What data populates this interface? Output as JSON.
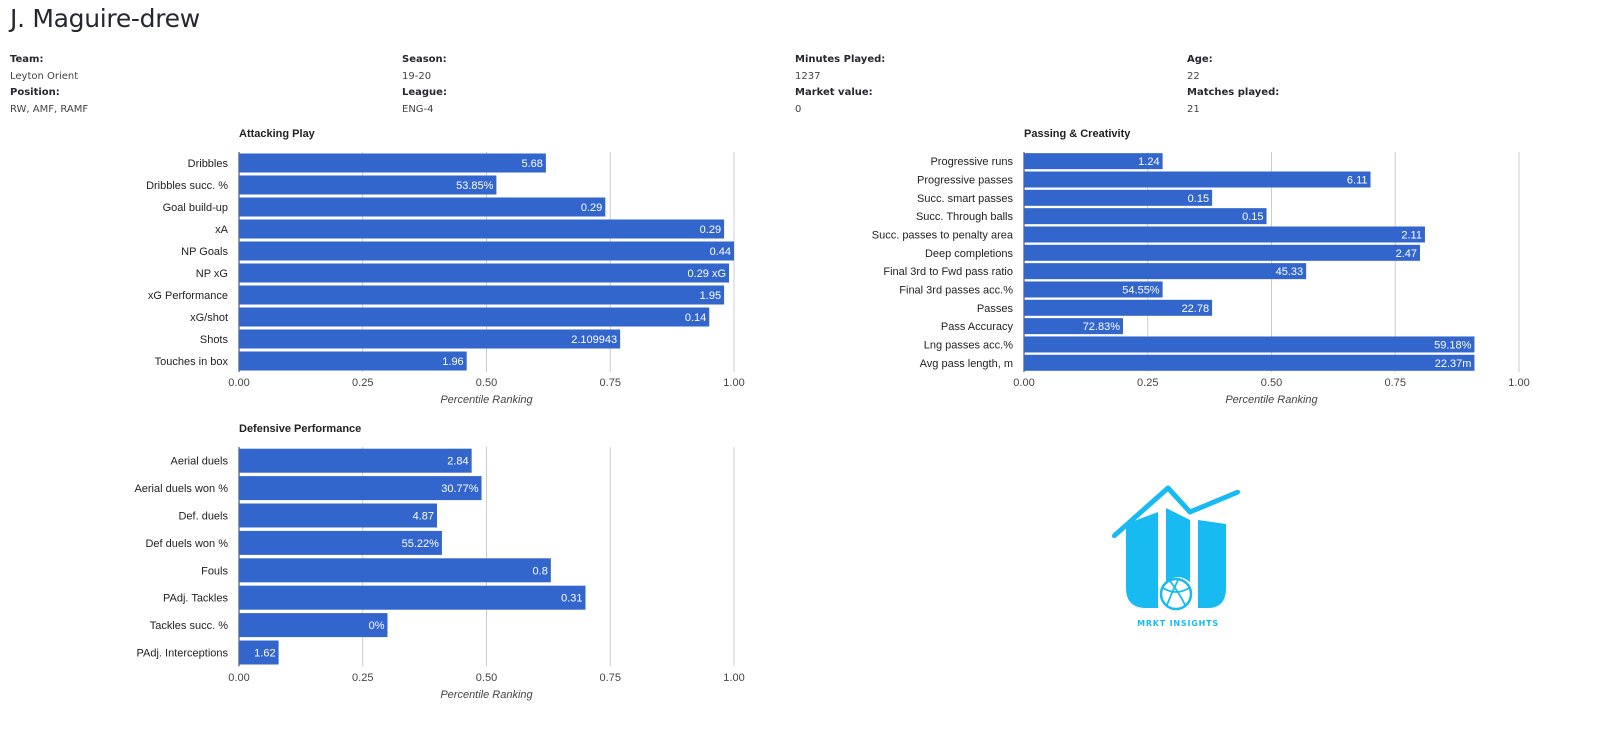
{
  "player": {
    "name": "J. Maguire-drew"
  },
  "info": [
    {
      "label": "Team:",
      "value": "Leyton Orient",
      "label2": "Position:",
      "value2": "RW, AMF, RAMF"
    },
    {
      "label": "Season:",
      "value": "19-20",
      "label2": "League:",
      "value2": "ENG-4"
    },
    {
      "label": "Minutes Played:",
      "value": "1237",
      "label2": "Market value:",
      "value2": "0"
    },
    {
      "label": "Age:",
      "value": "22",
      "label2": "Matches played:",
      "value2": "21"
    }
  ],
  "colors": {
    "bar": "#3366cc",
    "grid": "#cccccc",
    "logo": "#18baf2"
  },
  "brand": {
    "text": "MRKT INSIGHTS"
  },
  "chart_data": [
    {
      "type": "bar",
      "orientation": "horizontal",
      "title": "Attacking Play",
      "xlabel": "Percentile Ranking",
      "xlim": [
        0,
        1
      ],
      "ticks": [
        "0.00",
        "0.25",
        "0.50",
        "0.75",
        "1.00"
      ],
      "categories": [
        "Dribbles",
        "Dribbles succ. %",
        "Goal build-up",
        "xA",
        "NP Goals",
        "NP xG",
        "xG Performance",
        "xG/shot",
        "Shots",
        "Touches in box"
      ],
      "values": [
        0.62,
        0.52,
        0.74,
        0.98,
        1.0,
        0.99,
        0.98,
        0.95,
        0.77,
        0.46
      ],
      "data_labels": [
        "5.68",
        "53.85%",
        "0.29",
        "0.29",
        "0.44",
        "0.29 xG",
        "1.95",
        "0.14",
        "2.109943",
        "1.96"
      ]
    },
    {
      "type": "bar",
      "orientation": "horizontal",
      "title": "Passing & Creativity",
      "xlabel": "Percentile Ranking",
      "xlim": [
        0,
        1
      ],
      "ticks": [
        "0.00",
        "0.25",
        "0.50",
        "0.75",
        "1.00"
      ],
      "categories": [
        "Progressive runs",
        "Progressive passes",
        "Succ. smart passes",
        "Succ. Through balls",
        "Succ. passes to penalty area",
        "Deep completions",
        "Final 3rd to Fwd pass ratio",
        "Final 3rd passes acc.%",
        "Passes",
        "Pass Accuracy",
        "Lng passes acc.%",
        "Avg pass length, m"
      ],
      "values": [
        0.28,
        0.7,
        0.38,
        0.49,
        0.81,
        0.8,
        0.57,
        0.28,
        0.38,
        0.2,
        0.91,
        0.91
      ],
      "data_labels": [
        "1.24",
        "6.11",
        "0.15",
        "0.15",
        "2.11",
        "2.47",
        "45.33",
        "54.55%",
        "22.78",
        "72.83%",
        "59.18%",
        "22.37m"
      ]
    },
    {
      "type": "bar",
      "orientation": "horizontal",
      "title": "Defensive Performance",
      "xlabel": "Percentile Ranking",
      "xlim": [
        0,
        1
      ],
      "ticks": [
        "0.00",
        "0.25",
        "0.50",
        "0.75",
        "1.00"
      ],
      "categories": [
        "Aerial duels",
        "Aerial duels won %",
        "Def. duels",
        "Def duels won %",
        "Fouls",
        "PAdj. Tackles",
        "Tackles succ. %",
        "PAdj. Interceptions"
      ],
      "values": [
        0.47,
        0.49,
        0.4,
        0.41,
        0.63,
        0.7,
        0.3,
        0.08
      ],
      "data_labels": [
        "2.84",
        "30.77%",
        "4.87",
        "55.22%",
        "0.8",
        "0.31",
        "0%",
        "1.62"
      ]
    }
  ]
}
